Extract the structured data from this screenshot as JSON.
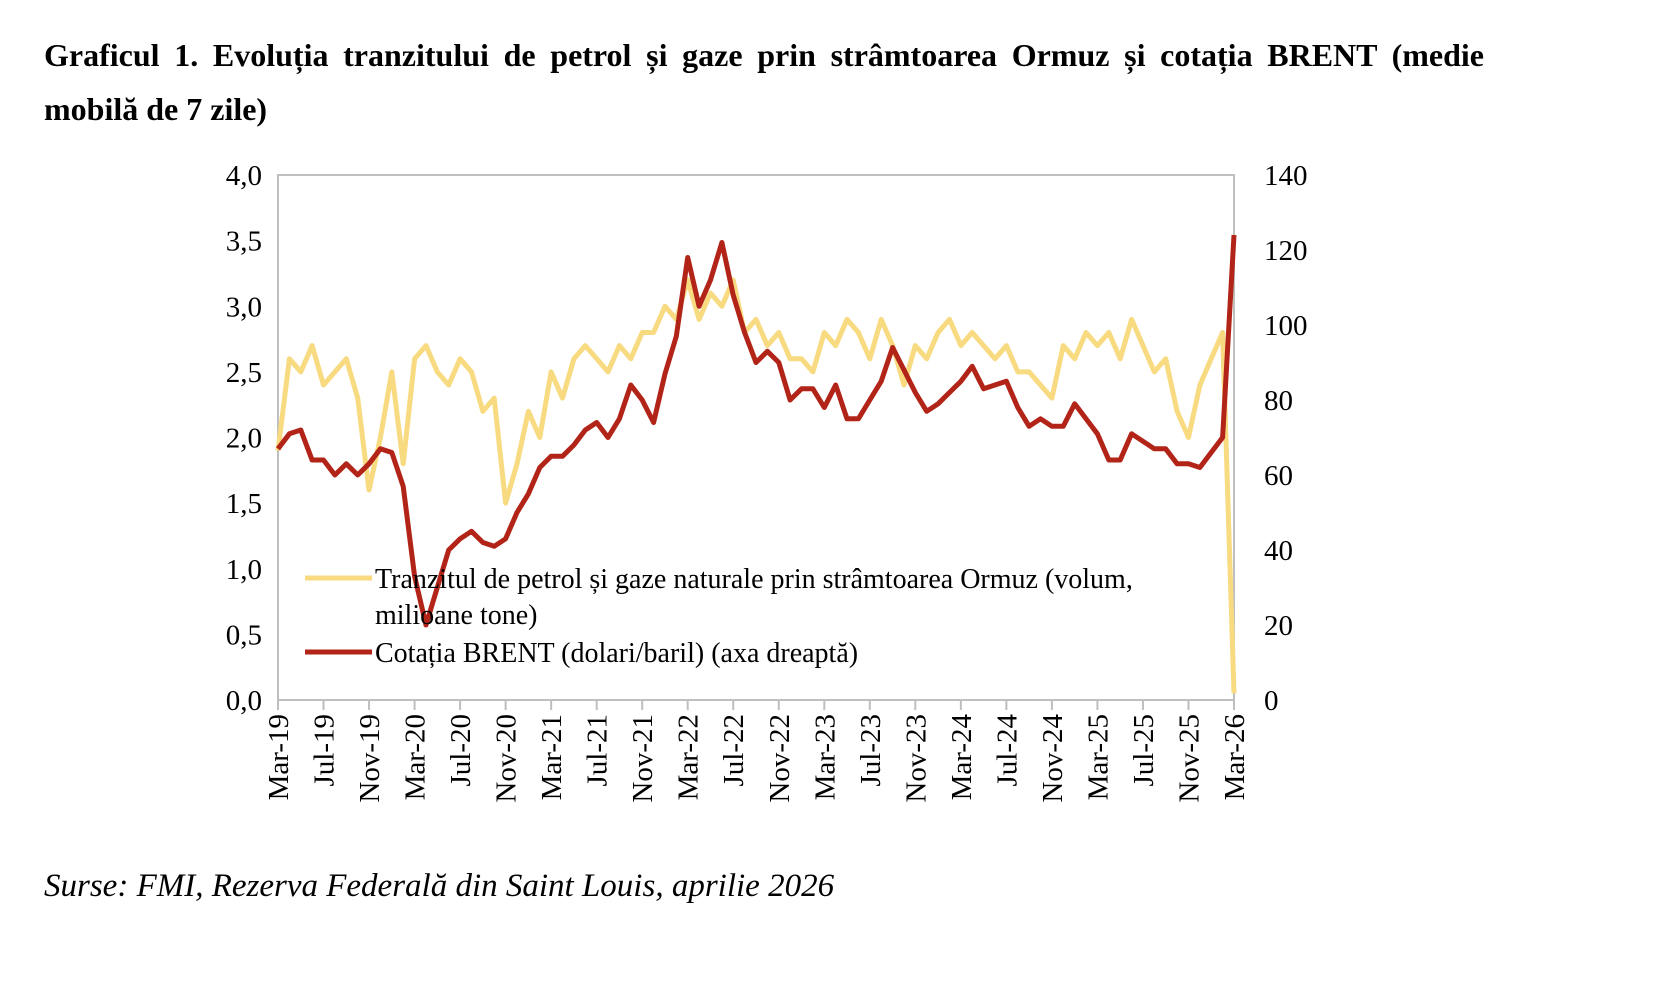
{
  "title": "Graficul 1. Evoluția tranzitului de petrol și gaze prin strâmtoarea Ormuz și cotația BRENT (medie mobilă de 7 zile)",
  "source": "Surse: FMI, Rezerva Federală din Saint Louis, aprilie 2026",
  "chart_data": {
    "type": "line",
    "title": "Graficul 1. Evoluția tranzitului de petrol și gaze prin strâmtoarea Ormuz și cotația BRENT (medie mobilă de 7 zile)",
    "x_tick_labels": [
      "Mar-19",
      "Jul-19",
      "Nov-19",
      "Mar-20",
      "Jul-20",
      "Nov-20",
      "Mar-21",
      "Jul-21",
      "Nov-21",
      "Mar-22",
      "Jul-22",
      "Nov-22",
      "Mar-23",
      "Jul-23",
      "Nov-23",
      "Mar-24",
      "Jul-24",
      "Nov-24",
      "Mar-25",
      "Jul-25",
      "Nov-25",
      "Mar-26"
    ],
    "x_start": "2019-03",
    "x_frequency": "monthly",
    "y_left": {
      "range": [
        0,
        4
      ],
      "ticks": [
        "0,0",
        "0,5",
        "1,0",
        "1,5",
        "2,0",
        "2,5",
        "3,0",
        "3,5",
        "4,0"
      ]
    },
    "y_right": {
      "range": [
        0,
        140
      ],
      "ticks": [
        "0",
        "20",
        "40",
        "60",
        "80",
        "100",
        "120",
        "140"
      ]
    },
    "grid": false,
    "legend_position": "bottom-left inside",
    "series": [
      {
        "name": "Tranzitul de petrol și gaze naturale prin strâmtoarea Ormuz (volum, milioane tone)",
        "axis": "left",
        "color": "#F8DA80",
        "values": [
          1.9,
          2.6,
          2.5,
          2.7,
          2.4,
          2.5,
          2.6,
          2.3,
          1.6,
          2.0,
          2.5,
          1.8,
          2.6,
          2.7,
          2.5,
          2.4,
          2.6,
          2.5,
          2.2,
          2.3,
          1.5,
          1.8,
          2.2,
          2.0,
          2.5,
          2.3,
          2.6,
          2.7,
          2.6,
          2.5,
          2.7,
          2.6,
          2.8,
          2.8,
          3.0,
          2.9,
          3.2,
          2.9,
          3.1,
          3.0,
          3.2,
          2.8,
          2.9,
          2.7,
          2.8,
          2.6,
          2.6,
          2.5,
          2.8,
          2.7,
          2.9,
          2.8,
          2.6,
          2.9,
          2.7,
          2.4,
          2.7,
          2.6,
          2.8,
          2.9,
          2.7,
          2.8,
          2.7,
          2.6,
          2.7,
          2.5,
          2.5,
          2.4,
          2.3,
          2.7,
          2.6,
          2.8,
          2.7,
          2.8,
          2.6,
          2.9,
          2.7,
          2.5,
          2.6,
          2.2,
          2.0,
          2.4,
          2.6,
          2.8,
          0.05
        ]
      },
      {
        "name": "Cotația BRENT (dolari/baril) (axa dreaptă)",
        "axis": "right",
        "color": "#B22418",
        "values": [
          67,
          71,
          72,
          64,
          64,
          60,
          63,
          60,
          63,
          67,
          66,
          57,
          33,
          20,
          30,
          40,
          43,
          45,
          42,
          41,
          43,
          50,
          55,
          62,
          65,
          65,
          68,
          72,
          74,
          70,
          75,
          84,
          80,
          74,
          87,
          97,
          118,
          105,
          112,
          122,
          108,
          98,
          90,
          93,
          90,
          80,
          83,
          83,
          78,
          84,
          75,
          75,
          80,
          85,
          94,
          88,
          82,
          77,
          79,
          82,
          85,
          89,
          83,
          84,
          85,
          78,
          73,
          75,
          73,
          73,
          79,
          75,
          71,
          64,
          64,
          71,
          69,
          67,
          67,
          63,
          63,
          62,
          66,
          70,
          124
        ]
      }
    ]
  }
}
